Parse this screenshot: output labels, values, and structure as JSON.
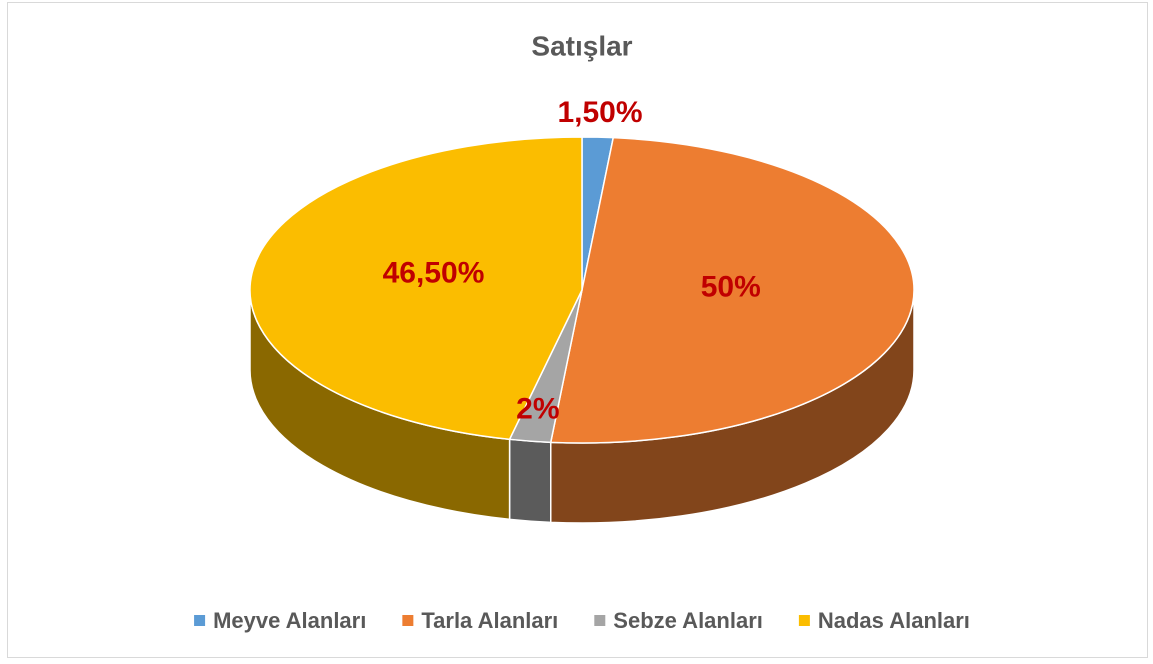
{
  "chart_data": {
    "type": "pie",
    "title": "Satışlar",
    "categories": [
      "Meyve Alanları",
      "Tarla Alanları",
      "Sebze Alanları",
      "Nadas Alanları"
    ],
    "values": [
      1.5,
      50,
      2,
      46.5
    ],
    "value_labels": [
      "1,50%",
      "50%",
      "2%",
      "46,50%"
    ],
    "colors": [
      "#5b9bd5",
      "#ed7d31",
      "#a5a5a5",
      "#fbbd00"
    ],
    "label_color": "#c00000",
    "legend": "bottom"
  }
}
